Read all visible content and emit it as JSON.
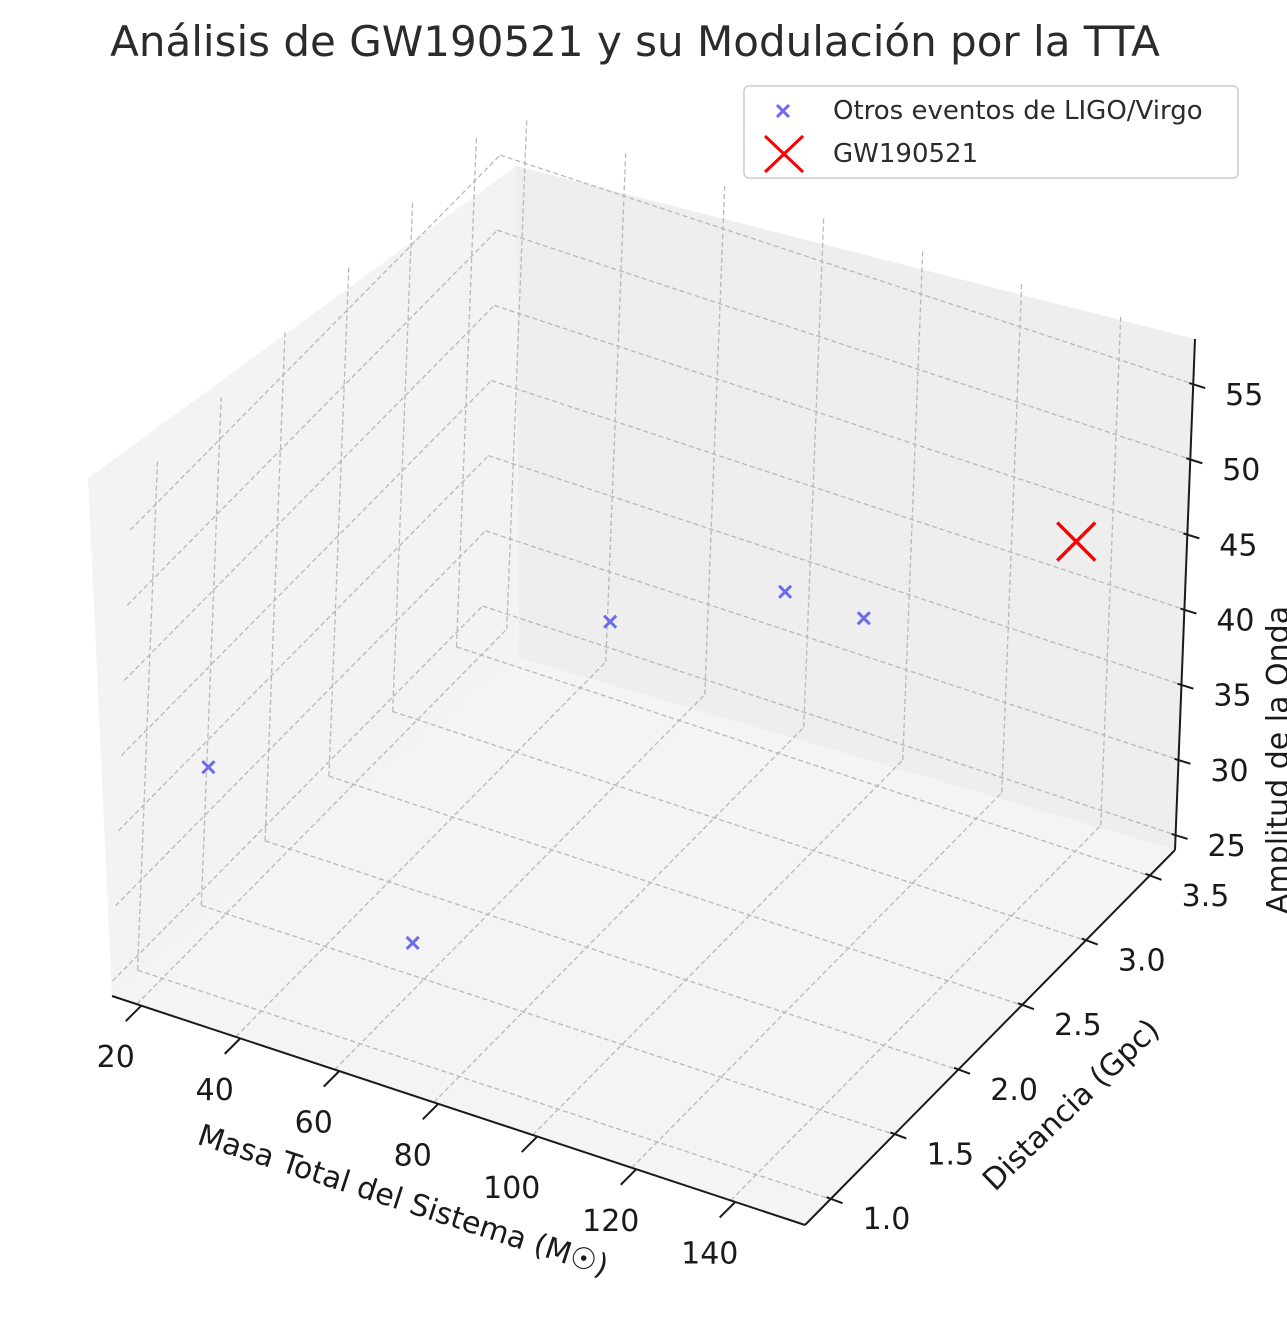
{
  "chart_data": {
    "type": "scatter",
    "title": "Análisis de GW190521 y su Modulación por la TTA",
    "xlabel": "Masa Total del Sistema (M☉)",
    "ylabel": "Distancia (Gpc)",
    "zlabel": "Amplitud de la Onda",
    "xlim": [
      15,
      155
    ],
    "ylim": [
      0.8,
      3.7
    ],
    "zlim": [
      24,
      58
    ],
    "xticks": [
      "20",
      "40",
      "60",
      "80",
      "100",
      "120",
      "140"
    ],
    "yticks": [
      "1.0",
      "1.5",
      "2.0",
      "2.5",
      "3.0",
      "3.5"
    ],
    "zticks": [
      "25",
      "30",
      "35",
      "40",
      "45",
      "50",
      "55"
    ],
    "grid": true,
    "legend_position": "top-right",
    "series": [
      {
        "name": "Otros eventos de LIGO/Virgo",
        "color": "#6b6bee",
        "marker": "x",
        "points": [
          {
            "x": 30,
            "y": 0.9,
            "z": 40
          },
          {
            "x": 55,
            "y": 1.6,
            "z": 25
          },
          {
            "x": 65,
            "y": 2.7,
            "z": 38
          },
          {
            "x": 85,
            "y": 3.3,
            "z": 37
          },
          {
            "x": 140,
            "y": 1.7,
            "z": 55
          },
          {
            "x": 150,
            "y": 3.0,
            "z": 50
          }
        ]
      },
      {
        "name": "GW190521",
        "color": "#ff0000",
        "marker": "x",
        "points": [
          {
            "x": 150,
            "y": 3.0,
            "z": 50
          }
        ]
      }
    ]
  }
}
